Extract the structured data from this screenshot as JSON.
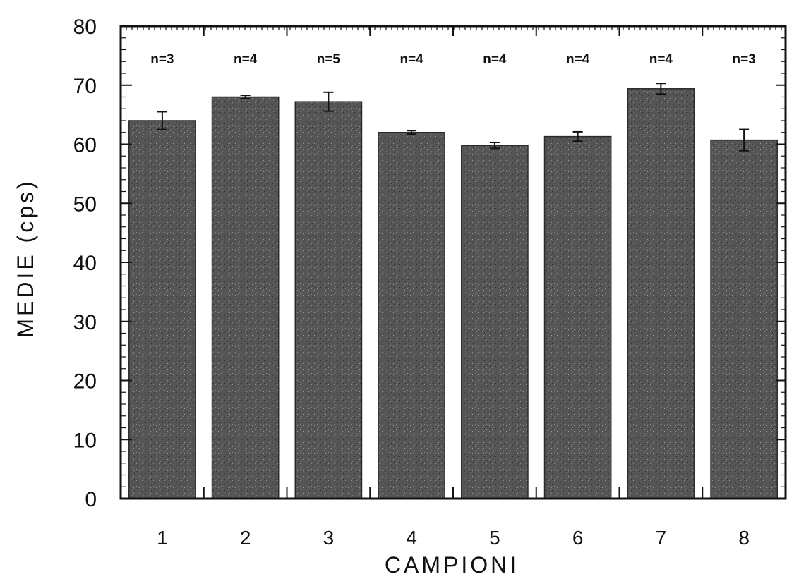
{
  "chart_data": {
    "type": "bar",
    "title": "",
    "xlabel": "CAMPIONI",
    "ylabel": "MEDIE  (cps)",
    "ylim": [
      0,
      80
    ],
    "yticks": [
      "0",
      "10",
      "20",
      "30",
      "40",
      "50",
      "60",
      "70",
      "80"
    ],
    "grid": false,
    "categories": [
      "1",
      "2",
      "3",
      "4",
      "5",
      "6",
      "7",
      "8"
    ],
    "values": [
      64,
      68,
      67.2,
      62,
      59.8,
      61.3,
      69.4,
      60.7
    ],
    "error": [
      1.5,
      0.3,
      1.6,
      0.3,
      0.5,
      0.8,
      0.9,
      1.8
    ],
    "annotations": [
      "n=3",
      "n=4",
      "n=5",
      "n=4",
      "n=4",
      "n=4",
      "n=4",
      "n=3"
    ],
    "colors": {
      "bar": "#555555",
      "bar_speckle": "#8a8a8a",
      "axis": "#111111"
    }
  }
}
